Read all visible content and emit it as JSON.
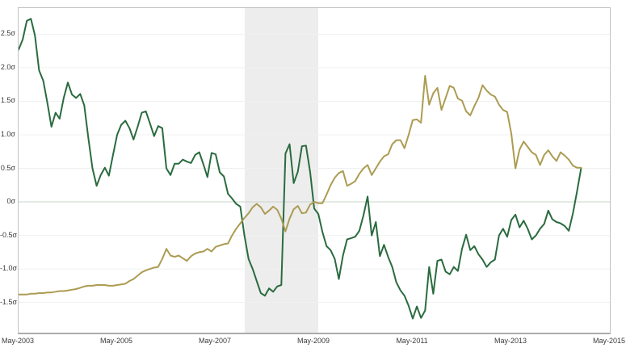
{
  "chart_data": {
    "type": "line",
    "title": "",
    "unit": "σ",
    "grid": "horizontal-only",
    "legend": "none",
    "x_axis": {
      "tick_labels": [
        "May-2003",
        "May-2005",
        "May-2007",
        "May-2009",
        "May-2011",
        "May-2013",
        "May-2015"
      ],
      "tick_months": [
        0,
        24,
        48,
        72,
        96,
        120,
        144
      ],
      "xlim_months": [
        0,
        144
      ],
      "months_per_point": 1,
      "start_label": "May-2003"
    },
    "y_axis": {
      "tick_labels": [
        "2.5σ",
        "2.0σ",
        "1.5σ",
        "1.0σ",
        "0.5σ",
        "0σ",
        "-0.5σ",
        "-1.0σ",
        "-1.5σ"
      ],
      "tick_values": [
        2.5,
        2.0,
        1.5,
        1.0,
        0.5,
        0,
        -0.5,
        -1.0,
        -1.5
      ],
      "ylim": [
        -1.95,
        2.89
      ]
    },
    "shaded_band": {
      "name": "recession-band",
      "start_month": 55,
      "end_month": 73,
      "color": "#ededed"
    },
    "series": [
      {
        "name": "dark-green-series",
        "color": "#2a6b3f",
        "width": 2,
        "values": [
          2.27,
          2.42,
          2.7,
          2.73,
          2.48,
          1.96,
          1.81,
          1.48,
          1.12,
          1.33,
          1.24,
          1.55,
          1.78,
          1.6,
          1.55,
          1.61,
          1.44,
          0.95,
          0.5,
          0.24,
          0.4,
          0.51,
          0.39,
          0.7,
          1.0,
          1.15,
          1.21,
          1.1,
          0.93,
          1.12,
          1.33,
          1.35,
          1.17,
          0.98,
          1.13,
          1.1,
          0.5,
          0.4,
          0.57,
          0.57,
          0.63,
          0.6,
          0.58,
          0.7,
          0.74,
          0.56,
          0.37,
          0.73,
          0.71,
          0.44,
          0.38,
          0.12,
          0.05,
          -0.03,
          -0.07,
          -0.5,
          -0.85,
          -1.0,
          -1.18,
          -1.36,
          -1.4,
          -1.29,
          -1.34,
          -1.26,
          -1.24,
          0.72,
          0.86,
          0.28,
          0.45,
          0.83,
          0.84,
          0.45,
          -0.1,
          -0.18,
          -0.45,
          -0.66,
          -0.72,
          -0.85,
          -1.15,
          -0.8,
          -0.56,
          -0.54,
          -0.52,
          -0.43,
          -0.2,
          0.08,
          -0.5,
          -0.3,
          -0.81,
          -0.64,
          -0.82,
          -0.97,
          -1.2,
          -1.32,
          -1.4,
          -1.55,
          -1.74,
          -1.56,
          -1.73,
          -1.62,
          -0.97,
          -1.37,
          -0.88,
          -0.86,
          -1.04,
          -1.08,
          -0.97,
          -1.03,
          -0.7,
          -0.49,
          -0.72,
          -0.66,
          -0.78,
          -0.86,
          -0.97,
          -0.9,
          -0.86,
          -0.5,
          -0.4,
          -0.52,
          -0.27,
          -0.19,
          -0.38,
          -0.28,
          -0.4,
          -0.56,
          -0.5,
          -0.4,
          -0.33,
          -0.13,
          -0.26,
          -0.3,
          -0.32,
          -0.36,
          -0.43,
          -0.17,
          0.15,
          0.5
        ]
      },
      {
        "name": "gold-series",
        "color": "#ac9c52",
        "width": 2,
        "values": [
          -1.38,
          -1.38,
          -1.38,
          -1.37,
          -1.37,
          -1.36,
          -1.36,
          -1.35,
          -1.35,
          -1.34,
          -1.33,
          -1.33,
          -1.32,
          -1.31,
          -1.3,
          -1.28,
          -1.26,
          -1.25,
          -1.25,
          -1.24,
          -1.24,
          -1.24,
          -1.25,
          -1.25,
          -1.24,
          -1.23,
          -1.22,
          -1.18,
          -1.15,
          -1.1,
          -1.05,
          -1.02,
          -1.0,
          -0.98,
          -0.97,
          -0.85,
          -0.7,
          -0.8,
          -0.82,
          -0.8,
          -0.84,
          -0.88,
          -0.81,
          -0.77,
          -0.75,
          -0.74,
          -0.7,
          -0.74,
          -0.67,
          -0.65,
          -0.63,
          -0.62,
          -0.5,
          -0.4,
          -0.32,
          -0.24,
          -0.17,
          -0.08,
          -0.03,
          -0.08,
          -0.18,
          -0.13,
          -0.07,
          -0.12,
          -0.25,
          -0.44,
          -0.25,
          -0.11,
          -0.06,
          -0.17,
          -0.16,
          -0.04,
          0.0,
          -0.02,
          -0.02,
          0.11,
          0.25,
          0.36,
          0.43,
          0.46,
          0.24,
          0.27,
          0.31,
          0.42,
          0.5,
          0.55,
          0.4,
          0.5,
          0.6,
          0.68,
          0.71,
          0.86,
          0.92,
          0.92,
          0.8,
          1.0,
          1.22,
          1.23,
          1.18,
          1.88,
          1.45,
          1.62,
          1.7,
          1.37,
          1.55,
          1.73,
          1.7,
          1.54,
          1.51,
          1.35,
          1.29,
          1.43,
          1.55,
          1.74,
          1.66,
          1.6,
          1.57,
          1.45,
          1.37,
          1.34,
          1.02,
          0.5,
          0.78,
          0.9,
          0.82,
          0.74,
          0.7,
          0.55,
          0.7,
          0.77,
          0.68,
          0.61,
          0.74,
          0.69,
          0.63,
          0.54,
          0.51,
          0.51
        ]
      }
    ]
  },
  "colors": {
    "background": "#ffffff",
    "plot_border": "#c2c2c2",
    "plot_border_bottom": "#ababab",
    "grid_line": "#eff1f1",
    "zero_line": "#c9d4c9",
    "band": "#ededed",
    "tick_text": "#3a3a3a",
    "series_green": "#2a6b3f",
    "series_gold": "#ac9c52"
  }
}
